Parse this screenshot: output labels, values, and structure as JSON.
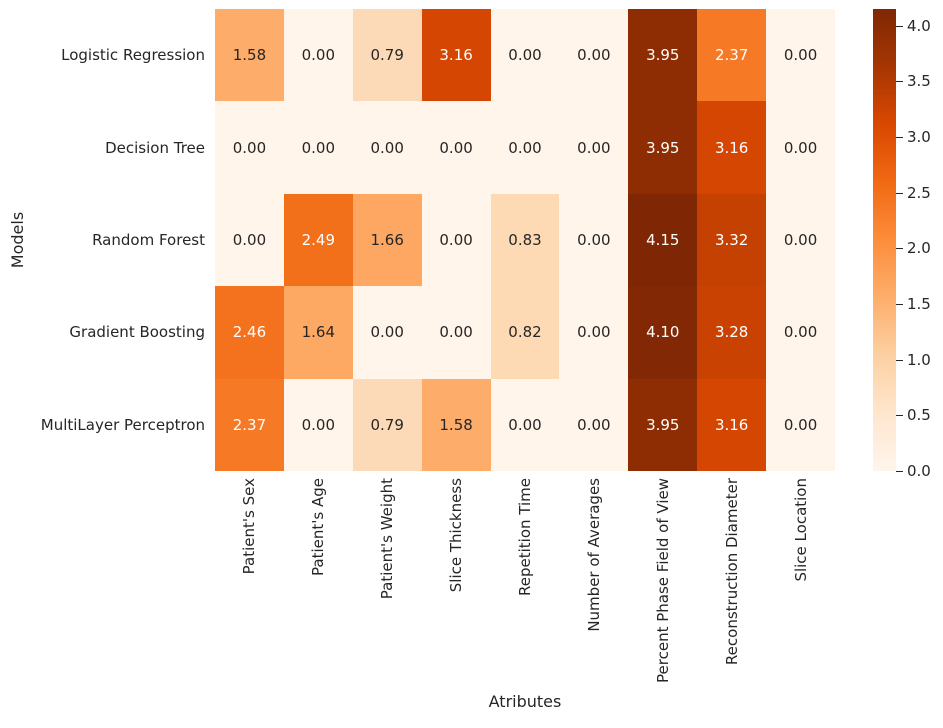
{
  "chart_data": {
    "type": "heatmap",
    "xlabel": "Atributes",
    "ylabel": "Models",
    "rows": [
      "Logistic Regression",
      "Decision Tree",
      "Random Forest",
      "Gradient Boosting",
      "MultiLayer Perceptron"
    ],
    "columns": [
      "Patient's Sex",
      "Patient's Age",
      "Patient's Weight",
      "Slice Thickness",
      "Repetition Time",
      "Number of Averages",
      "Percent Phase Field of View",
      "Reconstruction Diameter",
      "Slice Location"
    ],
    "values": [
      [
        1.58,
        0.0,
        0.79,
        3.16,
        0.0,
        0.0,
        3.95,
        2.37,
        0.0
      ],
      [
        0.0,
        0.0,
        0.0,
        0.0,
        0.0,
        0.0,
        3.95,
        3.16,
        0.0
      ],
      [
        0.0,
        2.49,
        1.66,
        0.0,
        0.83,
        0.0,
        4.15,
        3.32,
        0.0
      ],
      [
        2.46,
        1.64,
        0.0,
        0.0,
        0.82,
        0.0,
        4.1,
        3.28,
        0.0
      ],
      [
        2.37,
        0.0,
        0.79,
        1.58,
        0.0,
        0.0,
        3.95,
        3.16,
        0.0
      ]
    ],
    "value_decimals": 2,
    "vmin": 0.0,
    "vmax": 4.15,
    "colormap": {
      "name": "Oranges",
      "stops": [
        "#fff5eb",
        "#fee6ce",
        "#fdd0a2",
        "#fdae6b",
        "#fd8d3c",
        "#f16913",
        "#d94801",
        "#a63603",
        "#7f2704"
      ]
    },
    "colorbar": {
      "ticks": [
        0.0,
        0.5,
        1.0,
        1.5,
        2.0,
        2.5,
        3.0,
        3.5,
        4.0
      ],
      "tick_decimals": 1,
      "position": "right"
    },
    "annotation_colors": {
      "dark_text": "#262626",
      "light_text": "#ffffff"
    },
    "grid": false,
    "legend": false
  }
}
